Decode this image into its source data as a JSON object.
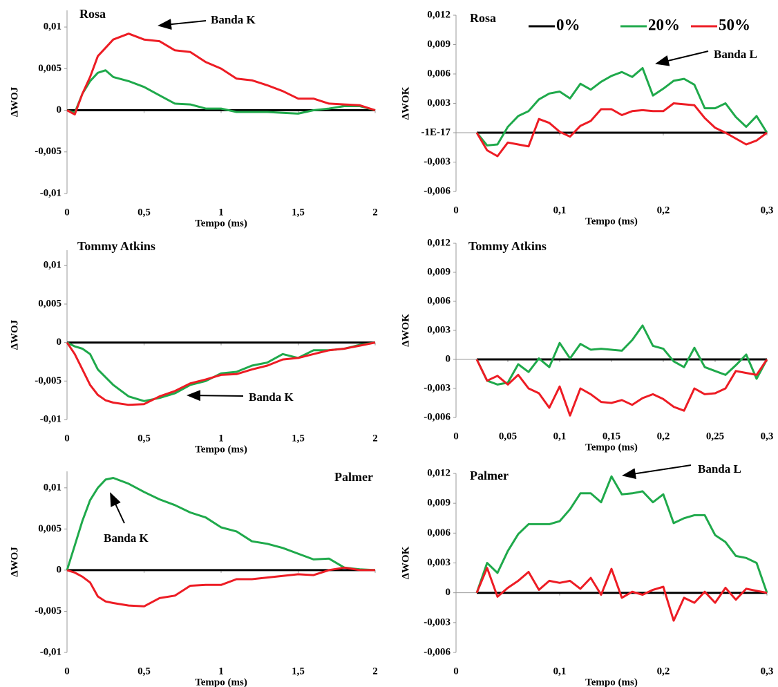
{
  "chart_data": [
    {
      "type": "line",
      "title": "Rosa",
      "ylabel": "ΔWOJ",
      "xlabel": "Tempo (ms)",
      "annotation": "Banda K",
      "xlim": [
        0,
        2
      ],
      "ylim": [
        -0.01,
        0.012
      ],
      "xticks": [
        0,
        {
          "value": 0.5,
          "label": "0,5"
        },
        1,
        {
          "value": 1.5,
          "label": "1,5"
        },
        2
      ],
      "yticks": [
        {
          "value": -0.01,
          "label": "-0,01"
        },
        {
          "value": -0.005,
          "label": "-0,005"
        },
        0,
        {
          "value": 0.005,
          "label": "0,005"
        },
        {
          "value": 0.01,
          "label": "0,01"
        }
      ],
      "x": [
        0,
        0.05,
        0.1,
        0.15,
        0.2,
        0.25,
        0.3,
        0.4,
        0.5,
        0.6,
        0.7,
        0.8,
        0.9,
        1,
        1.1,
        1.2,
        1.3,
        1.4,
        1.5,
        1.6,
        1.7,
        1.8,
        1.9,
        2
      ],
      "series": [
        {
          "color": "#000000",
          "values": [
            0,
            0,
            0,
            0,
            0,
            0,
            0,
            0,
            0,
            0,
            0,
            0,
            0,
            0,
            0,
            0,
            0,
            0,
            0,
            0,
            0,
            0,
            0,
            0
          ]
        },
        {
          "color": "#1fa94b",
          "values": [
            0,
            -0.0003,
            0.002,
            0.0035,
            0.0045,
            0.0048,
            0.004,
            0.0035,
            0.0028,
            0.0018,
            0.0008,
            0.0007,
            0.0002,
            0.0002,
            -0.0002,
            -0.0002,
            -0.0002,
            -0.0003,
            -0.0004,
            0,
            0.0002,
            0.0005,
            0.0005,
            0
          ]
        },
        {
          "color": "#ed1c24",
          "values": [
            0,
            -0.0005,
            0.002,
            0.004,
            0.0065,
            0.0075,
            0.0085,
            0.0092,
            0.0085,
            0.0083,
            0.0072,
            0.007,
            0.0058,
            0.005,
            0.0038,
            0.0036,
            0.003,
            0.0023,
            0.0014,
            0.0014,
            0.0008,
            0.0007,
            0.0006,
            0
          ]
        }
      ]
    },
    {
      "type": "line",
      "title": "Rosa",
      "ylabel": "ΔWOK",
      "xlabel": "Tempo (ms)",
      "annotation": "Banda L",
      "legend": "top",
      "xlim": [
        0,
        0.3
      ],
      "ylim": [
        -0.006,
        0.012
      ],
      "xticks": [
        0,
        {
          "value": 0.1,
          "label": "0,1"
        },
        {
          "value": 0.2,
          "label": "0,2"
        },
        {
          "value": 0.3,
          "label": "0,3"
        }
      ],
      "yticks": [
        {
          "value": -0.006,
          "label": "-0,006"
        },
        {
          "value": -0.003,
          "label": "-0,003"
        },
        {
          "value": -1e-17,
          "label": "-1E-17"
        },
        {
          "value": 0.003,
          "label": "0,003"
        },
        {
          "value": 0.006,
          "label": "0,006"
        },
        {
          "value": 0.009,
          "label": "0,009"
        },
        {
          "value": 0.012,
          "label": "0,012"
        }
      ],
      "x": [
        0.02,
        0.03,
        0.04,
        0.05,
        0.06,
        0.07,
        0.08,
        0.09,
        0.1,
        0.11,
        0.12,
        0.13,
        0.14,
        0.15,
        0.16,
        0.17,
        0.18,
        0.19,
        0.2,
        0.21,
        0.22,
        0.23,
        0.24,
        0.25,
        0.26,
        0.27,
        0.28,
        0.29,
        0.3
      ],
      "series": [
        {
          "name": "0%",
          "color": "#000000",
          "values": [
            0,
            0,
            0,
            0,
            0,
            0,
            0,
            0,
            0,
            0,
            0,
            0,
            0,
            0,
            0,
            0,
            0,
            0,
            0,
            0,
            0,
            0,
            0,
            0,
            0,
            0,
            0,
            0,
            0
          ]
        },
        {
          "name": "20%",
          "color": "#1fa94b",
          "values": [
            0,
            -0.0013,
            -0.0012,
            0.0006,
            0.0017,
            0.0022,
            0.0034,
            0.004,
            0.0042,
            0.0035,
            0.005,
            0.0044,
            0.0052,
            0.0058,
            0.0062,
            0.0057,
            0.0066,
            0.0038,
            0.0045,
            0.0053,
            0.0055,
            0.0049,
            0.0025,
            0.0025,
            0.003,
            0.0016,
            0.0006,
            0.0017,
            0
          ]
        },
        {
          "name": "50%",
          "color": "#ed1c24",
          "values": [
            0,
            -0.0018,
            -0.0024,
            -0.001,
            -0.0012,
            -0.0014,
            0.0014,
            0.001,
            0.0001,
            -0.0004,
            0.0007,
            0.0012,
            0.0024,
            0.0024,
            0.0018,
            0.0022,
            0.0023,
            0.0022,
            0.0022,
            0.003,
            0.0029,
            0.0028,
            0.0015,
            0.0005,
            0,
            -0.0006,
            -0.0012,
            -0.0008,
            0
          ]
        }
      ]
    },
    {
      "type": "line",
      "title": "Tommy Atkins",
      "ylabel": "ΔWOJ",
      "xlabel": "Tempo (ms)",
      "annotation": "Banda K",
      "xlim": [
        0,
        2
      ],
      "ylim": [
        -0.01,
        0.012
      ],
      "xticks": [
        0,
        {
          "value": 0.5,
          "label": "0,5"
        },
        1,
        {
          "value": 1.5,
          "label": "1,5"
        },
        2
      ],
      "yticks": [
        {
          "value": -0.01,
          "label": "-0,01"
        },
        {
          "value": -0.005,
          "label": "-0,005"
        },
        0,
        {
          "value": 0.005,
          "label": "0,005"
        },
        {
          "value": 0.01,
          "label": "0,01"
        }
      ],
      "x": [
        0,
        0.05,
        0.1,
        0.15,
        0.2,
        0.25,
        0.3,
        0.4,
        0.5,
        0.6,
        0.7,
        0.8,
        0.9,
        1,
        1.1,
        1.2,
        1.3,
        1.4,
        1.5,
        1.6,
        1.7,
        1.8,
        1.9,
        2
      ],
      "series": [
        {
          "color": "#000000",
          "values": [
            0,
            0,
            0,
            0,
            0,
            0,
            0,
            0,
            0,
            0,
            0,
            0,
            0,
            0,
            0,
            0,
            0,
            0,
            0,
            0,
            0,
            0,
            0,
            0
          ]
        },
        {
          "color": "#1fa94b",
          "values": [
            0,
            -0.0005,
            -0.0008,
            -0.0015,
            -0.0035,
            -0.0045,
            -0.0055,
            -0.007,
            -0.0076,
            -0.0072,
            -0.0066,
            -0.0055,
            -0.005,
            -0.004,
            -0.0038,
            -0.003,
            -0.0026,
            -0.0015,
            -0.002,
            -0.001,
            -0.001,
            -0.0008,
            -0.0003,
            0
          ]
        },
        {
          "color": "#ed1c24",
          "values": [
            0,
            -0.0015,
            -0.0035,
            -0.0055,
            -0.0068,
            -0.0075,
            -0.0078,
            -0.0081,
            -0.008,
            -0.007,
            -0.0063,
            -0.0053,
            -0.0048,
            -0.0042,
            -0.0041,
            -0.0035,
            -0.003,
            -0.0022,
            -0.002,
            -0.0015,
            -0.001,
            -0.0008,
            -0.0004,
            0
          ]
        }
      ]
    },
    {
      "type": "line",
      "title": "Tommy Atkins",
      "ylabel": "ΔWOK",
      "xlabel": "Tempo (ms)",
      "xlim": [
        0,
        0.3
      ],
      "ylim": [
        -0.006,
        0.012
      ],
      "xticks": [
        0,
        {
          "value": 0.05,
          "label": "0,05"
        },
        {
          "value": 0.1,
          "label": "0,1"
        },
        {
          "value": 0.15,
          "label": "0,15"
        },
        {
          "value": 0.2,
          "label": "0,2"
        },
        {
          "value": 0.25,
          "label": "0,25"
        },
        {
          "value": 0.3,
          "label": "0,3"
        }
      ],
      "yticks": [
        {
          "value": -0.006,
          "label": "-0,006"
        },
        {
          "value": -0.003,
          "label": "-0,003"
        },
        0,
        {
          "value": 0.003,
          "label": "0,003"
        },
        {
          "value": 0.006,
          "label": "0,006"
        },
        {
          "value": 0.009,
          "label": "0,009"
        },
        {
          "value": 0.012,
          "label": "0,012"
        }
      ],
      "x": [
        0.02,
        0.03,
        0.04,
        0.05,
        0.06,
        0.07,
        0.08,
        0.09,
        0.1,
        0.11,
        0.12,
        0.13,
        0.14,
        0.15,
        0.16,
        0.17,
        0.18,
        0.19,
        0.2,
        0.21,
        0.22,
        0.23,
        0.24,
        0.25,
        0.26,
        0.27,
        0.28,
        0.29,
        0.3
      ],
      "series": [
        {
          "color": "#000000",
          "values": [
            0,
            0,
            0,
            0,
            0,
            0,
            0,
            0,
            0,
            0,
            0,
            0,
            0,
            0,
            0,
            0,
            0,
            0,
            0,
            0,
            0,
            0,
            0,
            0,
            0,
            0,
            0,
            0,
            0
          ]
        },
        {
          "color": "#1fa94b",
          "values": [
            0,
            -0.0022,
            -0.0026,
            -0.0024,
            -0.0005,
            -0.0013,
            0.0001,
            -0.0008,
            0.0017,
            0.0001,
            0.0016,
            0.001,
            0.0011,
            0.001,
            0.0009,
            0.002,
            0.0035,
            0.0014,
            0.0011,
            -0.0002,
            -0.0008,
            0.0012,
            -0.0008,
            -0.0012,
            -0.0016,
            -0.0006,
            0.0005,
            -0.002,
            0
          ]
        },
        {
          "color": "#ed1c24",
          "values": [
            0,
            -0.0022,
            -0.0017,
            -0.0026,
            -0.0016,
            -0.003,
            -0.0035,
            -0.005,
            -0.0028,
            -0.0058,
            -0.003,
            -0.0036,
            -0.0044,
            -0.0045,
            -0.0042,
            -0.0047,
            -0.004,
            -0.0036,
            -0.0041,
            -0.0049,
            -0.0053,
            -0.003,
            -0.0036,
            -0.0035,
            -0.003,
            -0.0012,
            -0.0014,
            -0.0016,
            0
          ]
        }
      ]
    },
    {
      "type": "line",
      "title": "Palmer",
      "ylabel": "ΔWOJ",
      "xlabel": "Tempo (ms)",
      "annotation": "Banda K",
      "xlim": [
        0,
        2
      ],
      "ylim": [
        -0.01,
        0.012
      ],
      "xticks": [
        0,
        {
          "value": 0.5,
          "label": "0,5"
        },
        1,
        {
          "value": 1.5,
          "label": "1,5"
        },
        2
      ],
      "yticks": [
        {
          "value": -0.01,
          "label": "-0,01"
        },
        {
          "value": -0.005,
          "label": "-0,005"
        },
        0,
        {
          "value": 0.005,
          "label": "0,005"
        },
        {
          "value": 0.01,
          "label": "0,01"
        }
      ],
      "x": [
        0,
        0.05,
        0.1,
        0.15,
        0.2,
        0.25,
        0.3,
        0.4,
        0.5,
        0.6,
        0.7,
        0.8,
        0.9,
        1,
        1.1,
        1.2,
        1.3,
        1.4,
        1.5,
        1.6,
        1.7,
        1.8,
        1.9,
        2
      ],
      "series": [
        {
          "color": "#000000",
          "values": [
            0,
            0,
            0,
            0,
            0,
            0,
            0,
            0,
            0,
            0,
            0,
            0,
            0,
            0,
            0,
            0,
            0,
            0,
            0,
            0,
            0,
            0,
            0,
            0
          ]
        },
        {
          "color": "#1fa94b",
          "values": [
            0,
            0.003,
            0.006,
            0.0085,
            0.01,
            0.011,
            0.0112,
            0.0105,
            0.0095,
            0.0086,
            0.0079,
            0.007,
            0.0064,
            0.0052,
            0.0047,
            0.0035,
            0.0032,
            0.0027,
            0.002,
            0.0013,
            0.0014,
            0.0003,
            0.0001,
            0
          ]
        },
        {
          "color": "#ed1c24",
          "values": [
            0,
            -0.0003,
            -0.0008,
            -0.0015,
            -0.0032,
            -0.0038,
            -0.004,
            -0.0043,
            -0.0044,
            -0.0034,
            -0.0031,
            -0.0019,
            -0.0018,
            -0.0018,
            -0.0011,
            -0.0011,
            -0.0009,
            -0.0007,
            -0.0005,
            -0.0006,
            0,
            0.0003,
            0,
            0
          ]
        }
      ]
    },
    {
      "type": "line",
      "title": "Palmer",
      "ylabel": "ΔWOK",
      "xlabel": "Tempo (ms)",
      "annotation": "Banda L",
      "xlim": [
        0,
        0.3
      ],
      "ylim": [
        -0.006,
        0.012
      ],
      "xticks": [
        0,
        {
          "value": 0.1,
          "label": "0,1"
        },
        {
          "value": 0.2,
          "label": "0,2"
        },
        {
          "value": 0.3,
          "label": "0,3"
        }
      ],
      "yticks": [
        {
          "value": -0.006,
          "label": "-0,006"
        },
        {
          "value": -0.003,
          "label": "-0,003"
        },
        0,
        {
          "value": 0.003,
          "label": "0,003"
        },
        {
          "value": 0.006,
          "label": "0,006"
        },
        {
          "value": 0.009,
          "label": "0,009"
        },
        {
          "value": 0.012,
          "label": "0,012"
        }
      ],
      "x": [
        0.02,
        0.03,
        0.04,
        0.05,
        0.06,
        0.07,
        0.08,
        0.09,
        0.1,
        0.11,
        0.12,
        0.13,
        0.14,
        0.15,
        0.16,
        0.17,
        0.18,
        0.19,
        0.2,
        0.21,
        0.22,
        0.23,
        0.24,
        0.25,
        0.26,
        0.27,
        0.28,
        0.29,
        0.3
      ],
      "series": [
        {
          "color": "#000000",
          "values": [
            0,
            0,
            0,
            0,
            0,
            0,
            0,
            0,
            0,
            0,
            0,
            0,
            0,
            0,
            0,
            0,
            0,
            0,
            0,
            0,
            0,
            0,
            0,
            0,
            0,
            0,
            0,
            0,
            0
          ]
        },
        {
          "color": "#1fa94b",
          "values": [
            0,
            0.003,
            0.002,
            0.0042,
            0.0059,
            0.0069,
            0.0069,
            0.0069,
            0.0072,
            0.0084,
            0.01,
            0.01,
            0.0091,
            0.0117,
            0.0099,
            0.01,
            0.0102,
            0.0091,
            0.0099,
            0.007,
            0.0075,
            0.0078,
            0.0078,
            0.0058,
            0.0051,
            0.0037,
            0.0035,
            0.003,
            0
          ]
        },
        {
          "color": "#ed1c24",
          "values": [
            0,
            0.0025,
            -0.0004,
            0.0005,
            0.0012,
            0.0021,
            0.0003,
            0.0012,
            0.001,
            0.0012,
            0.0004,
            0.0015,
            -0.0002,
            0.0024,
            -0.0005,
            0.0001,
            -0.0002,
            0.0003,
            0.0006,
            -0.0028,
            -0.0005,
            -0.001,
            0.0001,
            -0.001,
            0.0005,
            -0.0007,
            0.0004,
            0.0002,
            0
          ]
        }
      ]
    }
  ]
}
